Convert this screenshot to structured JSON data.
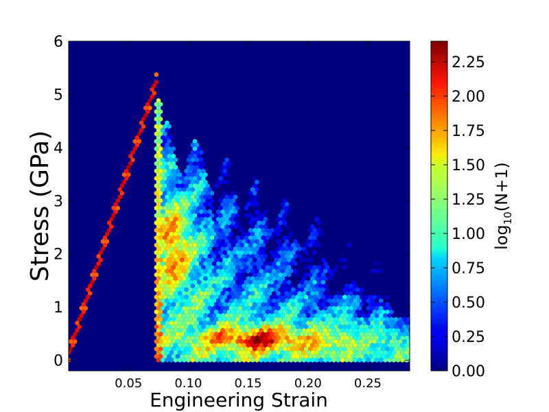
{
  "chart_data": {
    "type": "hexbin-heatmap",
    "title": "",
    "xlabel": "Engineering Strain",
    "ylabel": "Stress (GPa)",
    "xlim": [
      0.0,
      0.285
    ],
    "ylim": [
      -0.2,
      6.0
    ],
    "xticks": [
      0.05,
      0.1,
      0.15,
      0.2,
      0.25
    ],
    "xtick_labels": [
      "0.05",
      "0.10",
      "0.15",
      "0.20",
      "0.25"
    ],
    "yticks": [
      0,
      1,
      2,
      3,
      4,
      5,
      6
    ],
    "ytick_labels": [
      "0",
      "1",
      "2",
      "3",
      "4",
      "5",
      "6"
    ],
    "colorbar": {
      "label_base": "log",
      "label_sub": "10",
      "label_rest": "(N+1)",
      "range": [
        0.0,
        2.4
      ],
      "ticks": [
        0.0,
        0.25,
        0.5,
        0.75,
        1.0,
        1.25,
        1.5,
        1.75,
        2.0,
        2.25
      ],
      "tick_labels": [
        "0.00",
        "0.25",
        "0.50",
        "0.75",
        "1.00",
        "1.25",
        "1.50",
        "1.75",
        "2.00",
        "2.25"
      ],
      "colormap": "jet"
    },
    "background_color": "#00007f",
    "regions": [
      {
        "name": "elastic-line",
        "strain_start": 0.0,
        "stress_start": 0.1,
        "strain_end": 0.074,
        "stress_end": 5.3,
        "log_density": 2.35
      },
      {
        "name": "yield-drop",
        "strain": 0.075,
        "stress_top": 4.9,
        "stress_bottom": 0.0,
        "log_density": 1.3
      },
      {
        "name": "post-yield-band",
        "strain_center": 0.088,
        "stress_center": 2.2,
        "log_density": 2.1
      },
      {
        "name": "failure-floor",
        "strain_center": 0.16,
        "stress_center": 0.4,
        "log_density": 2.2
      }
    ]
  }
}
